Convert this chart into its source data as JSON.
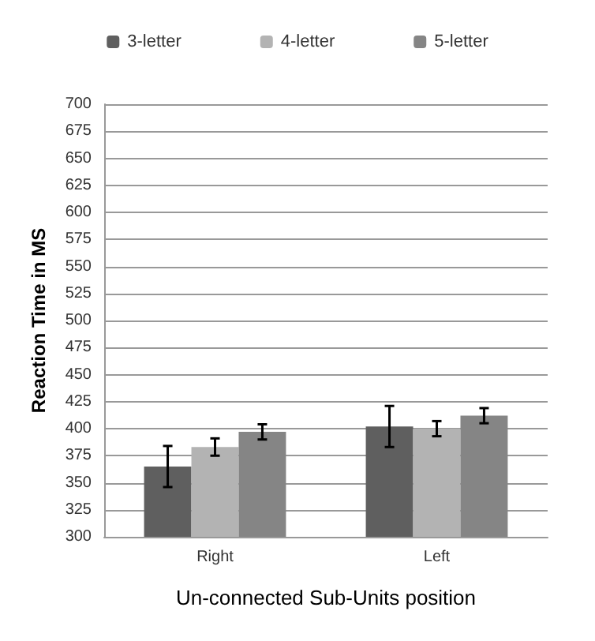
{
  "chart_data": {
    "type": "bar",
    "xlabel": "Un-connected Sub-Units position",
    "ylabel": "Reaction Time in MS",
    "categories": [
      "Right",
      "Left"
    ],
    "series": [
      {
        "name": "3-letter",
        "color": "#5f5f5f",
        "values": [
          365,
          402
        ],
        "errors": [
          19,
          19
        ]
      },
      {
        "name": "4-letter",
        "color": "#b3b3b3",
        "values": [
          383,
          400
        ],
        "errors": [
          8,
          7
        ]
      },
      {
        "name": "5-letter",
        "color": "#858585",
        "values": [
          397,
          412
        ],
        "errors": [
          7,
          7
        ]
      }
    ],
    "ylim": [
      300,
      700
    ],
    "yticks": [
      300,
      325,
      350,
      375,
      400,
      425,
      450,
      475,
      500,
      525,
      550,
      575,
      600,
      625,
      650,
      675,
      700
    ],
    "grid": "y",
    "legend": "top"
  }
}
